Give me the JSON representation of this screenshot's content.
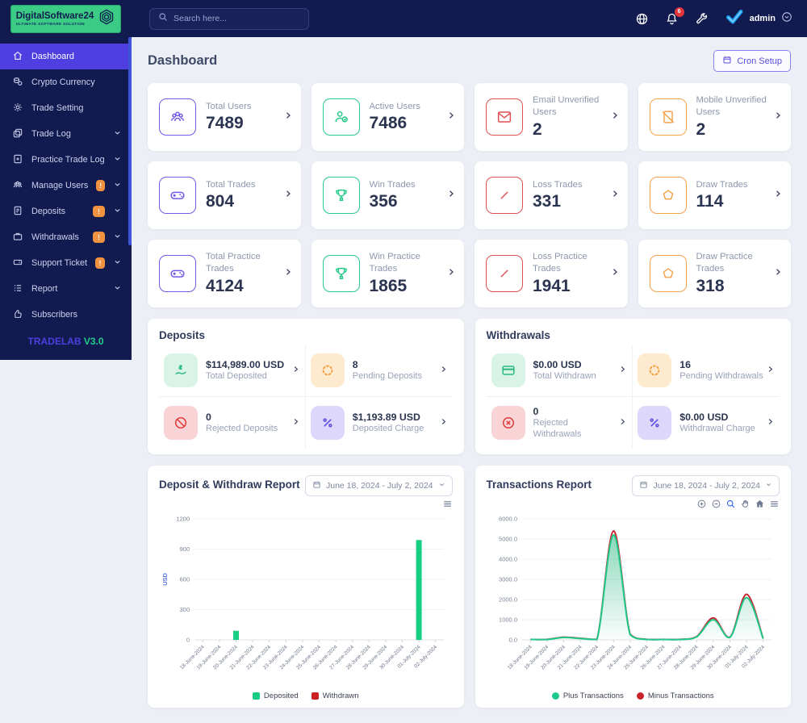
{
  "brand": {
    "name": "DigitalSoftware24",
    "tagline": "ULTIMATE SOFTWARE SOLUTION"
  },
  "navbar": {
    "search_placeholder": "Search here...",
    "notification_count": "6",
    "user": "admin",
    "icons": [
      "globe-icon",
      "bell-icon",
      "wrench-icon",
      "verified-avatar",
      "chevron-down-icon"
    ]
  },
  "sidebar": {
    "items": [
      {
        "label": "Dashboard",
        "icon": "home",
        "active": true
      },
      {
        "label": "Crypto Currency",
        "icon": "coins"
      },
      {
        "label": "Trade Setting",
        "icon": "gear"
      },
      {
        "label": "Trade Log",
        "icon": "cards",
        "chevron": true
      },
      {
        "label": "Practice Trade Log",
        "icon": "file-plus",
        "chevron": true
      },
      {
        "label": "Manage Users",
        "icon": "users",
        "badge": "!",
        "chevron": true
      },
      {
        "label": "Deposits",
        "icon": "document-dollar",
        "badge": "!",
        "chevron": true
      },
      {
        "label": "Withdrawals",
        "icon": "briefcase",
        "badge": "!",
        "chevron": true
      },
      {
        "label": "Support Ticket",
        "icon": "ticket",
        "badge": "!",
        "chevron": true
      },
      {
        "label": "Report",
        "icon": "list",
        "chevron": true
      },
      {
        "label": "Subscribers",
        "icon": "thumbs-up"
      }
    ],
    "footer": {
      "brand": "TRADELAB",
      "version": "V3.0"
    }
  },
  "page": {
    "title": "Dashboard",
    "cron_button": "Cron Setup"
  },
  "stat_cards": [
    {
      "title": "Total Users",
      "value": "7489",
      "icon": "users",
      "color": "purple"
    },
    {
      "title": "Active Users",
      "value": "7486",
      "icon": "user-check",
      "color": "green"
    },
    {
      "title": "Email Unverified Users",
      "value": "2",
      "icon": "envelope",
      "color": "red"
    },
    {
      "title": "Mobile Unverified Users",
      "value": "2",
      "icon": "mobile-slash",
      "color": "orange"
    },
    {
      "title": "Total Trades",
      "value": "804",
      "icon": "gamepad",
      "color": "purple"
    },
    {
      "title": "Win Trades",
      "value": "356",
      "icon": "trophy",
      "color": "green"
    },
    {
      "title": "Loss Trades",
      "value": "331",
      "icon": "slash",
      "color": "red"
    },
    {
      "title": "Draw Trades",
      "value": "114",
      "icon": "pentagon",
      "color": "orange"
    },
    {
      "title": "Total Practice Trades",
      "value": "4124",
      "icon": "gamepad",
      "color": "purple"
    },
    {
      "title": "Win Practice Trades",
      "value": "1865",
      "icon": "trophy",
      "color": "green"
    },
    {
      "title": "Loss Practice Trades",
      "value": "1941",
      "icon": "slash",
      "color": "red"
    },
    {
      "title": "Draw Practice Trades",
      "value": "318",
      "icon": "pentagon",
      "color": "orange"
    }
  ],
  "deposits_panel": {
    "title": "Deposits",
    "items": [
      {
        "value": "$114,989.00 USD",
        "label": "Total Deposited",
        "icon": "hand-dollar",
        "tint": "green"
      },
      {
        "value": "8",
        "label": "Pending Deposits",
        "icon": "spinner",
        "tint": "orange"
      },
      {
        "value": "0",
        "label": "Rejected Deposits",
        "icon": "ban",
        "tint": "red"
      },
      {
        "value": "$1,193.89 USD",
        "label": "Deposited Charge",
        "icon": "percent",
        "tint": "purple"
      }
    ]
  },
  "withdrawals_panel": {
    "title": "Withdrawals",
    "items": [
      {
        "value": "$0.00 USD",
        "label": "Total Withdrawn",
        "icon": "credit-card",
        "tint": "green"
      },
      {
        "value": "16",
        "label": "Pending Withdrawals",
        "icon": "spinner",
        "tint": "orange"
      },
      {
        "value": "0",
        "label": "Rejected Withdrawals",
        "icon": "circle-x",
        "tint": "red"
      },
      {
        "value": "$0.00 USD",
        "label": "Withdrawal Charge",
        "icon": "percent",
        "tint": "purple"
      }
    ]
  },
  "chart_data": [
    {
      "type": "bar",
      "title": "Deposit & Withdraw Report",
      "date_range": "June 18, 2024 - July 2, 2024",
      "ylabel": "USD",
      "ylim": [
        0,
        1200
      ],
      "yticks": [
        0,
        300,
        600,
        900,
        1200
      ],
      "ytick_decimals": 0,
      "grid": true,
      "legend_position": "bottom",
      "categories": [
        "18-June-2024",
        "19-June-2024",
        "20-June-2024",
        "21-June-2024",
        "22-June-2024",
        "23-June-2024",
        "24-June-2024",
        "25-June-2024",
        "26-June-2024",
        "27-June-2024",
        "28-June-2024",
        "29-June-2024",
        "30-June-2024",
        "01-July-2024",
        "02-July-2024"
      ],
      "series": [
        {
          "name": "Deposited",
          "color": "#17ce83",
          "values": [
            0,
            0,
            90,
            0,
            0,
            0,
            0,
            0,
            0,
            0,
            0,
            0,
            0,
            990,
            0
          ]
        },
        {
          "name": "Withdrawn",
          "color": "#cc1f26",
          "values": [
            0,
            0,
            0,
            0,
            0,
            0,
            0,
            0,
            0,
            0,
            0,
            0,
            0,
            0,
            0
          ]
        }
      ]
    },
    {
      "type": "area",
      "title": "Transactions Report",
      "date_range": "June 18, 2024 - July 2, 2024",
      "ylabel": "",
      "ylim": [
        0,
        6000
      ],
      "yticks": [
        0,
        1000,
        2000,
        3000,
        4000,
        5000,
        6000
      ],
      "ytick_decimals": 1,
      "grid": true,
      "legend_position": "bottom",
      "categories": [
        "18-June-2024",
        "19-June-2024",
        "20-June-2024",
        "21-June-2024",
        "22-June-2024",
        "23-June-2024",
        "24-June-2024",
        "25-June-2024",
        "26-June-2024",
        "27-June-2024",
        "28-June-2024",
        "29-June-2024",
        "30-June-2024",
        "01-July-2024",
        "02-July-2024"
      ],
      "series": [
        {
          "name": "Plus Transactions",
          "color": "#1ec98a",
          "values": [
            20,
            20,
            120,
            70,
            30,
            5200,
            250,
            20,
            20,
            20,
            150,
            1000,
            120,
            2100,
            60
          ]
        },
        {
          "name": "Minus Transactions",
          "color": "#c8242b",
          "values": [
            25,
            25,
            135,
            80,
            35,
            5400,
            280,
            25,
            25,
            25,
            165,
            1090,
            135,
            2260,
            70
          ]
        }
      ]
    }
  ]
}
